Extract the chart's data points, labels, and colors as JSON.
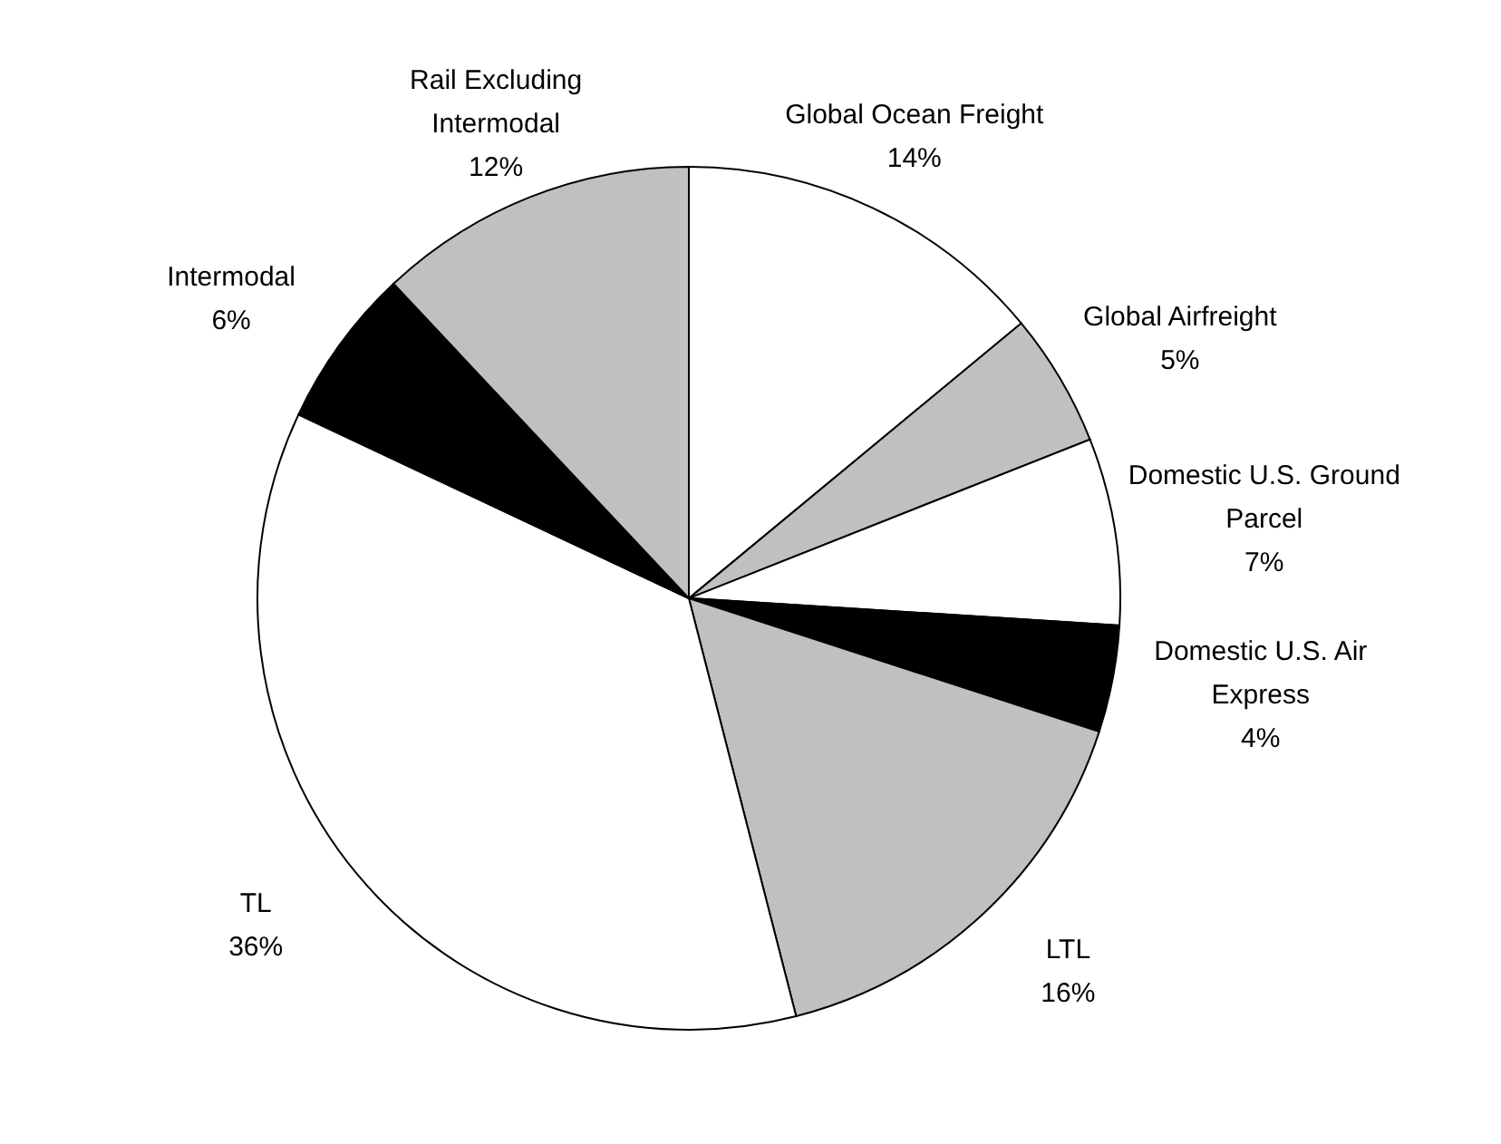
{
  "chart_data": {
    "type": "pie",
    "categories": [
      "Global Ocean Freight",
      "Global Airfreight",
      "Domestic U.S. Ground Parcel",
      "Domestic U.S. Air Express",
      "LTL",
      "TL",
      "Intermodal",
      "Rail Excluding Intermodal"
    ],
    "values": [
      14,
      5,
      7,
      4,
      16,
      36,
      6,
      12
    ],
    "value_labels": [
      "14%",
      "5%",
      "7%",
      "4%",
      "16%",
      "36%",
      "6%",
      "12%"
    ],
    "colors": [
      "#ffffff",
      "#c0c0c0",
      "#ffffff",
      "#000000",
      "#c0c0c0",
      "#ffffff",
      "#000000",
      "#c0c0c0"
    ]
  }
}
